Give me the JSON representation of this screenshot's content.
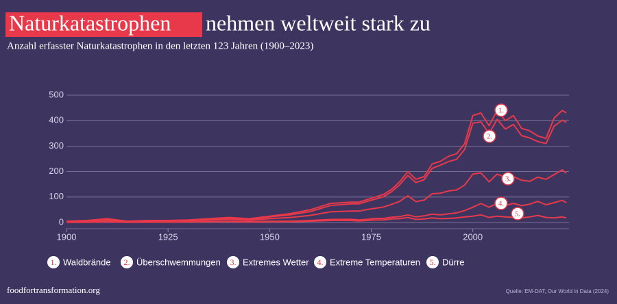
{
  "chart_data": {
    "type": "line",
    "title_highlight": "Naturkatastrophen",
    "title": "nehmen weltweit stark zu",
    "subtitle": "Anzahl erfasster Naturkatastrophen in den letzten 123 Jahren (1900–2023)",
    "stacked": true,
    "x": [
      1900,
      1905,
      1910,
      1915,
      1920,
      1925,
      1930,
      1935,
      1940,
      1945,
      1950,
      1955,
      1960,
      1965,
      1970,
      1972,
      1974,
      1976,
      1978,
      1980,
      1982,
      1984,
      1986,
      1988,
      1990,
      1992,
      1994,
      1996,
      1998,
      2000,
      2002,
      2004,
      2006,
      2008,
      2010,
      2012,
      2014,
      2016,
      2018,
      2020,
      2022,
      2023
    ],
    "series": [
      {
        "name": "Waldbrände",
        "label": "1.",
        "color": "#e8394a",
        "values": [
          1,
          1,
          2,
          1,
          1,
          1,
          1,
          2,
          2,
          2,
          3,
          5,
          7,
          8,
          7,
          7,
          7,
          8,
          9,
          9,
          12,
          15,
          13,
          12,
          17,
          15,
          21,
          22,
          23,
          30,
          35,
          30,
          35,
          33,
          35,
          29,
          28,
          22,
          20,
          32,
          38,
          37
        ]
      },
      {
        "name": "Überschwemmungen",
        "label": "2.",
        "color": "#e8394a",
        "values": [
          1,
          2,
          4,
          1,
          2,
          2,
          2,
          3,
          5,
          4,
          7,
          10,
          15,
          25,
          28,
          28,
          32,
          36,
          40,
          50,
          65,
          80,
          75,
          80,
          100,
          110,
          115,
          120,
          140,
          200,
          200,
          190,
          215,
          190,
          205,
          175,
          170,
          140,
          140,
          190,
          195,
          200
        ]
      },
      {
        "name": "Extremes Wetter",
        "label": "3.",
        "color": "#e8394a",
        "values": [
          2,
          4,
          6,
          2,
          3,
          3,
          4,
          6,
          8,
          6,
          10,
          15,
          20,
          30,
          32,
          35,
          38,
          40,
          45,
          50,
          60,
          75,
          60,
          62,
          80,
          85,
          90,
          90,
          100,
          130,
          120,
          100,
          115,
          110,
          105,
          100,
          90,
          95,
          100,
          110,
          120,
          115
        ]
      },
      {
        "name": "Extreme Temperaturen",
        "label": "4.",
        "color": "#e8394a",
        "values": [
          0,
          0,
          1,
          0,
          1,
          0,
          1,
          1,
          2,
          1,
          2,
          2,
          3,
          4,
          5,
          4,
          5,
          6,
          6,
          7,
          8,
          10,
          10,
          12,
          15,
          15,
          18,
          20,
          25,
          35,
          45,
          40,
          50,
          45,
          55,
          48,
          50,
          55,
          50,
          60,
          65,
          60
        ]
      },
      {
        "name": "Dürre",
        "label": "5.",
        "color": "#e8394a",
        "values": [
          1,
          1,
          2,
          1,
          1,
          2,
          2,
          3,
          3,
          2,
          3,
          3,
          5,
          8,
          8,
          6,
          8,
          10,
          10,
          14,
          15,
          20,
          12,
          14,
          18,
          15,
          16,
          18,
          22,
          25,
          30,
          20,
          25,
          22,
          20,
          18,
          22,
          28,
          20,
          18,
          22,
          18
        ]
      }
    ],
    "xlim": [
      1900,
      2023
    ],
    "xticks": [
      1900,
      1925,
      1950,
      1975,
      2000
    ],
    "ylim": [
      0,
      500
    ],
    "yticks": [
      0,
      100,
      200,
      300,
      400,
      500
    ],
    "grid": true,
    "source": "Quelle: EM-DAT, Our World in Data (2024)",
    "footer": "foodfortransformation.org"
  }
}
